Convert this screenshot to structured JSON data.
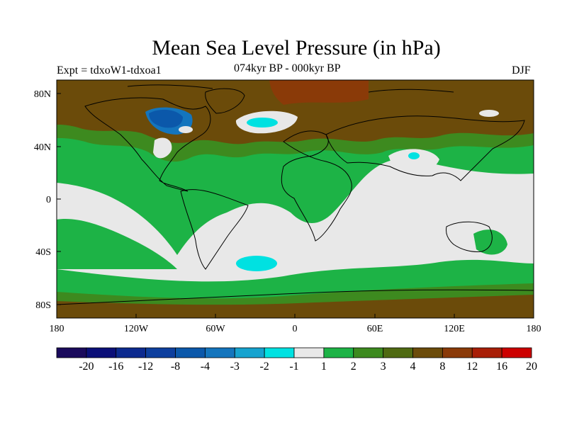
{
  "title": "Mean Sea Level Pressure (in hPa)",
  "experiment": "Expt = tdxoW1-tdxoa1",
  "period": "074kyr BP - 000kyr BP",
  "season": "DJF",
  "axes": {
    "lat_labels": [
      "80N",
      "40N",
      "0",
      "40S",
      "80S"
    ],
    "lon_labels": [
      "180",
      "120W",
      "60W",
      "0",
      "60E",
      "120E",
      "180"
    ]
  },
  "colorbar": {
    "labels": [
      "-20",
      "-16",
      "-12",
      "-8",
      "-4",
      "-3",
      "-2",
      "-1",
      "1",
      "2",
      "3",
      "4",
      "8",
      "12",
      "16",
      "20"
    ],
    "colors": [
      "#1a0a5c",
      "#0b0f78",
      "#0c2a8f",
      "#0d3f9e",
      "#0b58aa",
      "#1475bd",
      "#16a3cf",
      "#00e1e1",
      "#e8e8e8",
      "#1db346",
      "#3d8a1f",
      "#4f6a12",
      "#6b4b0a",
      "#8a3a08",
      "#a81e06",
      "#cc0000"
    ]
  },
  "colors": {
    "background_field": "#e8e8e8",
    "green_1_2": "#1db346",
    "green_2_3": "#3d8a1f",
    "olive_3_4": "#4f6a12",
    "brown_4_8": "#6b4b0a",
    "brown_8_12": "#8a3a08",
    "cyan_-2_-1": "#00e1e1",
    "blue_-4_-3": "#1475bd",
    "blue_-8_-4": "#0b58aa"
  }
}
